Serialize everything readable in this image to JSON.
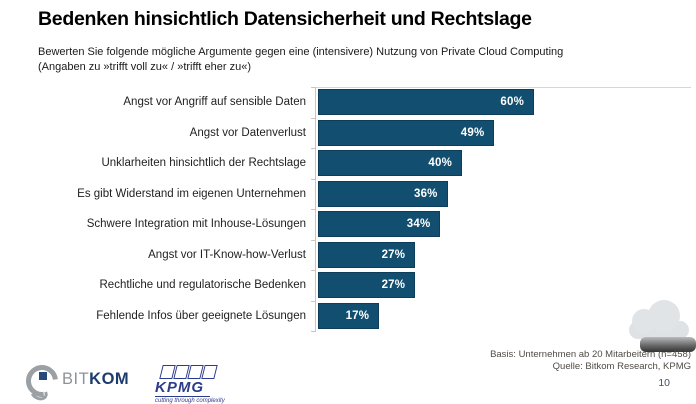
{
  "slide": {
    "title": "Bedenken hinsichtlich Datensicherheit und Rechtslage",
    "subtitle_line1": "Bewerten Sie folgende mögliche Argumente gegen eine (intensivere) Nutzung von Private Cloud Computing",
    "subtitle_line2": "(Angaben zu »trifft voll zu« / »trifft eher zu«)",
    "page_number": "10"
  },
  "chart_data": {
    "type": "bar",
    "orientation": "horizontal",
    "title": "Bedenken hinsichtlich Datensicherheit und Rechtslage",
    "categories": [
      "Angst vor Angriff auf sensible Daten",
      "Angst vor Datenverlust",
      "Unklarheiten hinsichtlich der Rechtslage",
      "Es gibt Widerstand im eigenen Unternehmen",
      "Schwere Integration mit Inhouse-Lösungen",
      "Angst vor IT-Know-how-Verlust",
      "Rechtliche und regulatorische Bedenken",
      "Fehlende Infos über geeignete Lösungen"
    ],
    "values": [
      60,
      49,
      40,
      36,
      34,
      27,
      27,
      17
    ],
    "value_labels": [
      "60%",
      "49%",
      "40%",
      "36%",
      "34%",
      "27%",
      "27%",
      "17%"
    ],
    "xlim": [
      0,
      100
    ],
    "grid": false,
    "legend": "none",
    "value_label_position": "inside-end",
    "bar_color": "#124E70"
  },
  "footer": {
    "basis": "Basis: Unternehmen ab 20 Mitarbeitern (n=458)",
    "quelle": "Quelle: Bitkom Research, KPMG"
  },
  "logos": {
    "bitkom": {
      "text_light": "BIT",
      "text_bold": "KOM"
    },
    "kpmg": {
      "name": "KPMG",
      "tagline": "cutting through complexity"
    }
  },
  "icons": {
    "cloud": "cloud-icon (gray cloud with dark reflection shadow)"
  },
  "colors": {
    "bar": "#124E70",
    "bar_value_text": "#ffffff",
    "axis_gray": "#c6c6c6",
    "footer_text": "#4f4a45",
    "bitkom_gray": "#8f9396",
    "bitkom_navy": "#1d3c6e",
    "kpmg_blue": "#2c3c8c",
    "background": "#ffffff"
  }
}
